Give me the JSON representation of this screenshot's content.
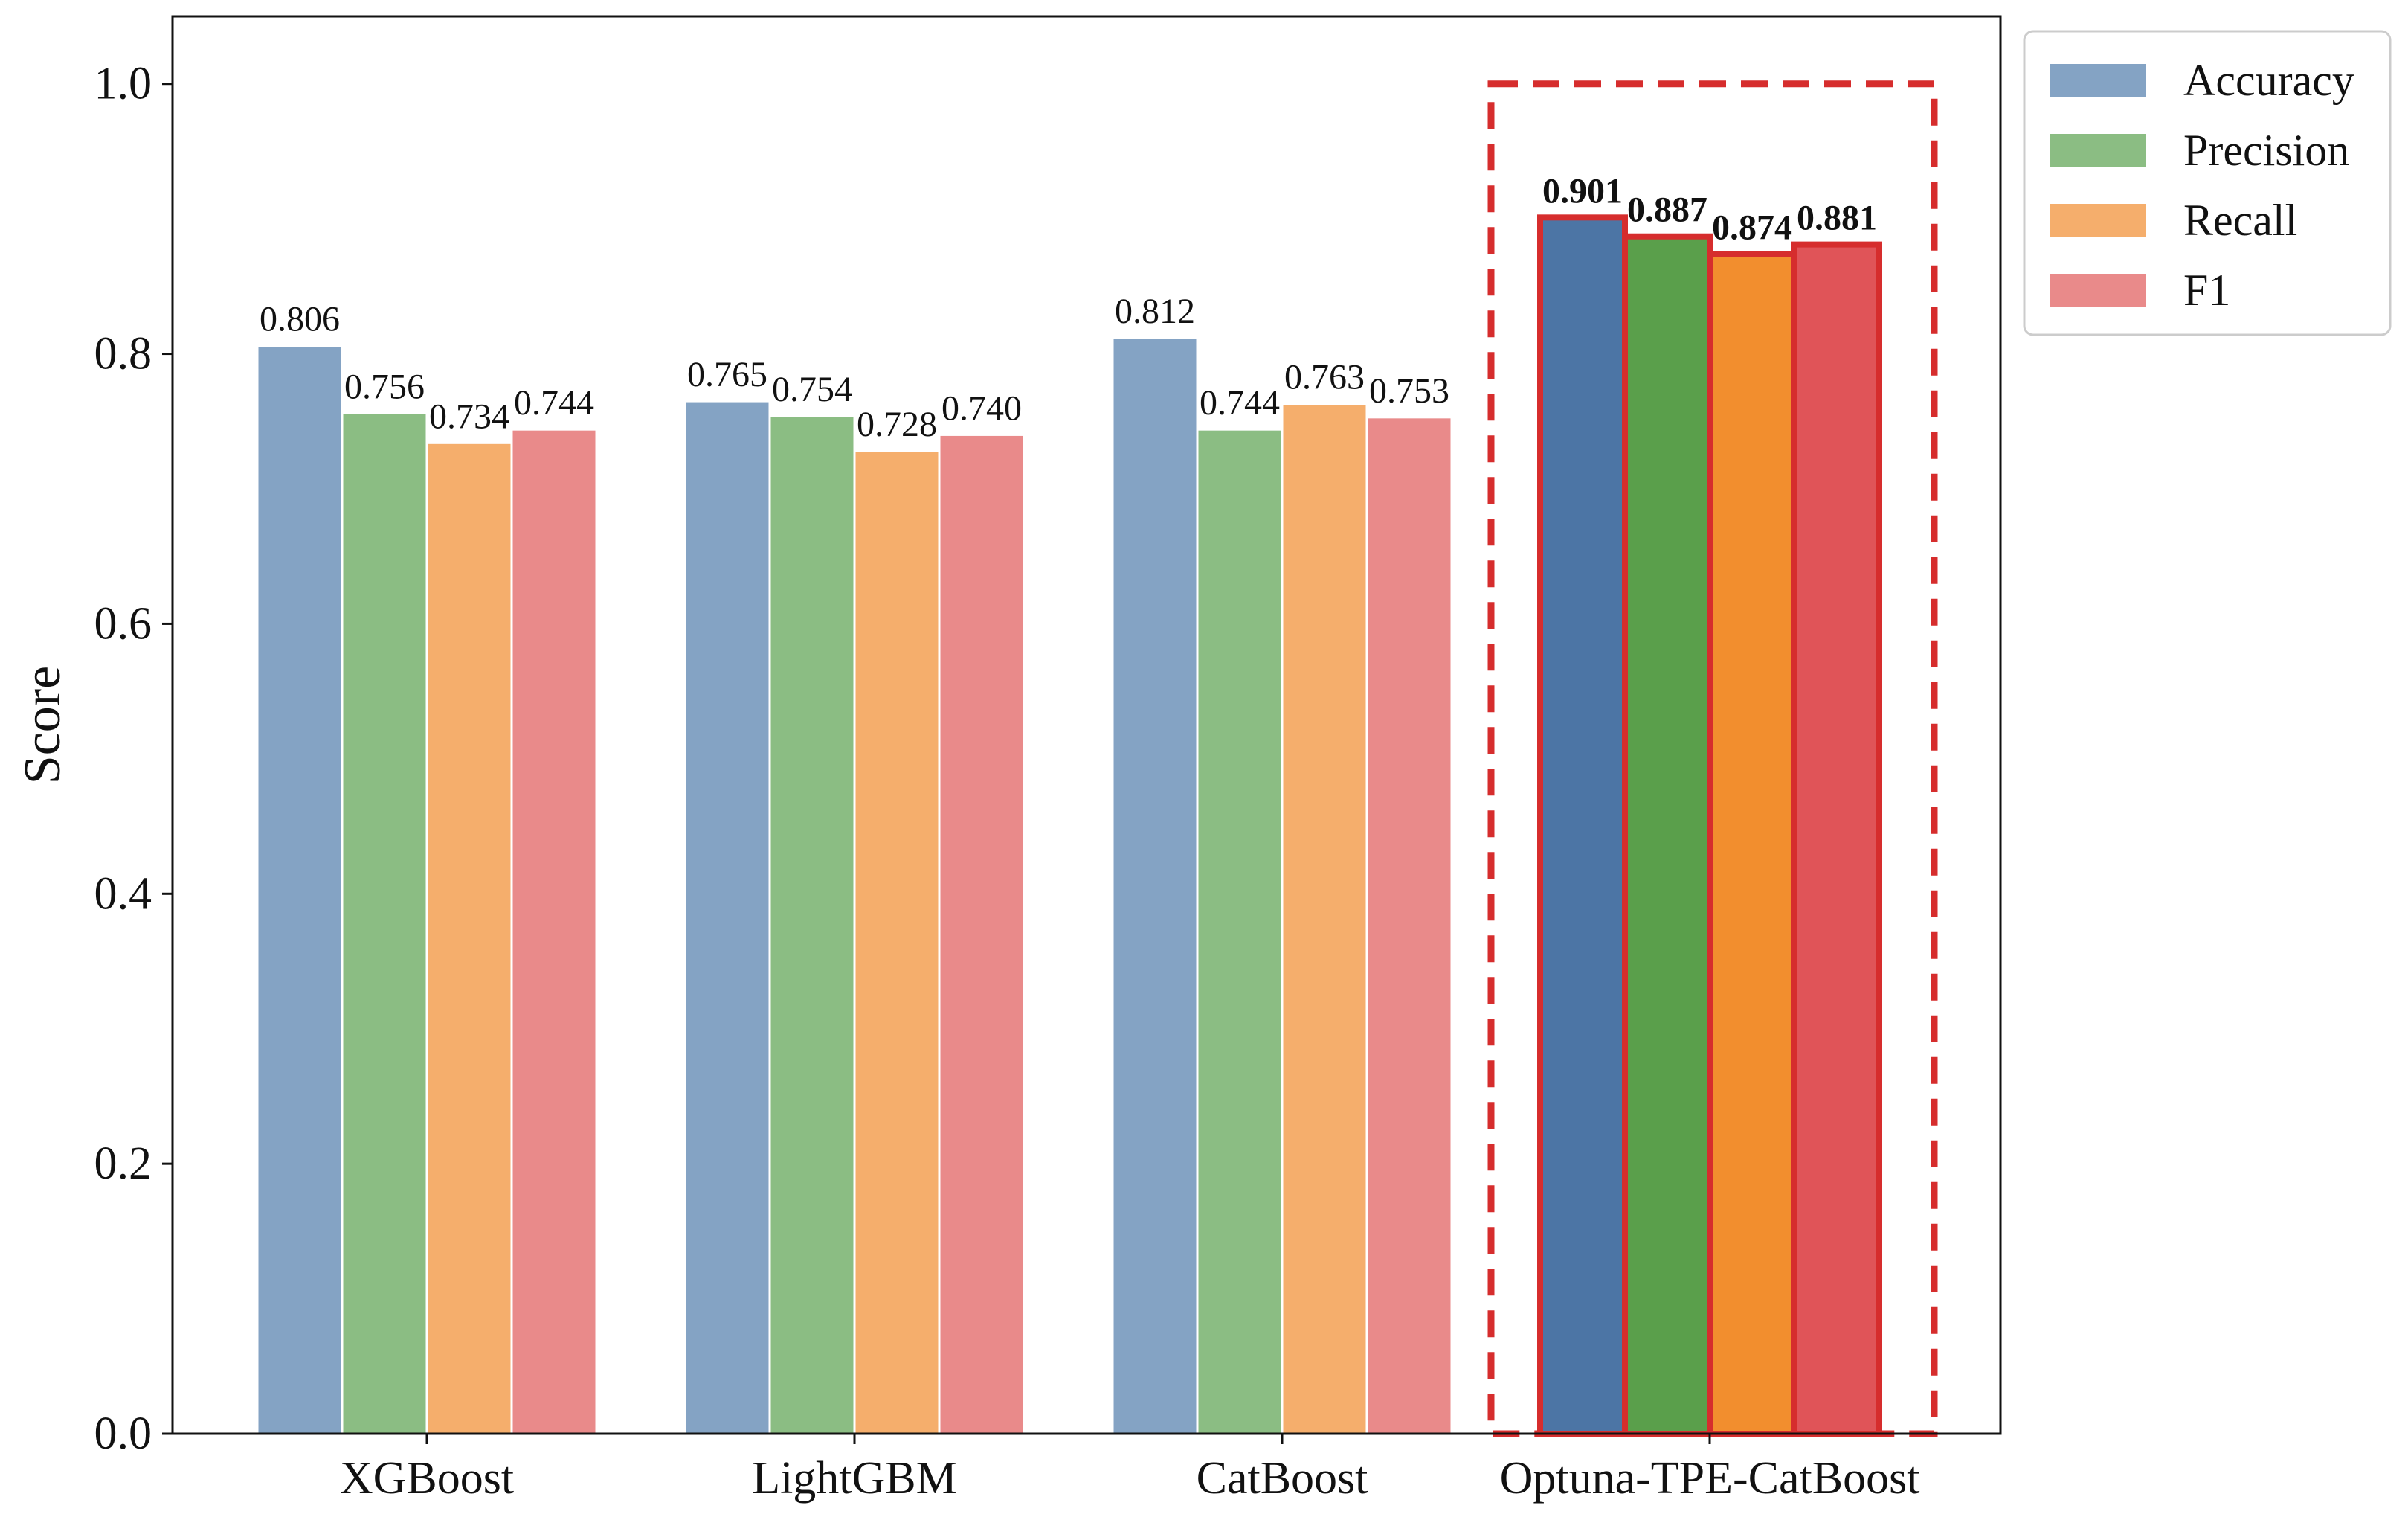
{
  "chart_data": {
    "type": "bar",
    "title": "",
    "xlabel": "",
    "ylabel": "Score",
    "ylim": [
      0,
      1.05
    ],
    "yticks": [
      "0.0",
      "0.2",
      "0.4",
      "0.6",
      "0.8",
      "1.0"
    ],
    "categories": [
      "XGBoost",
      "LightGBM",
      "CatBoost",
      "Optuna-TPE-CatBoost"
    ],
    "highlighted_category": "Optuna-TPE-CatBoost",
    "legend_position": "upper right, outside plot",
    "series": [
      {
        "name": "Accuracy",
        "color": "#84a3c4",
        "highlight_color": "#4c75a5",
        "values": [
          0.806,
          0.765,
          0.812,
          0.901
        ],
        "labels": [
          "0.806",
          "0.765",
          "0.812",
          "0.901"
        ]
      },
      {
        "name": "Precision",
        "color": "#8bbd83",
        "highlight_color": "#5a9f4b",
        "values": [
          0.756,
          0.754,
          0.744,
          0.887
        ],
        "labels": [
          "0.756",
          "0.754",
          "0.744",
          "0.887"
        ]
      },
      {
        "name": "Recall",
        "color": "#f5ae6c",
        "highlight_color": "#f28e2e",
        "values": [
          0.734,
          0.728,
          0.763,
          0.874
        ],
        "labels": [
          "0.734",
          "0.728",
          "0.763",
          "0.874"
        ]
      },
      {
        "name": "F1",
        "color": "#e98a8a",
        "highlight_color": "#e05458",
        "values": [
          0.744,
          0.74,
          0.753,
          0.881
        ],
        "labels": [
          "0.744",
          "0.740",
          "0.753",
          "0.881"
        ]
      }
    ],
    "highlight_outline_color": "#d62d2d"
  }
}
